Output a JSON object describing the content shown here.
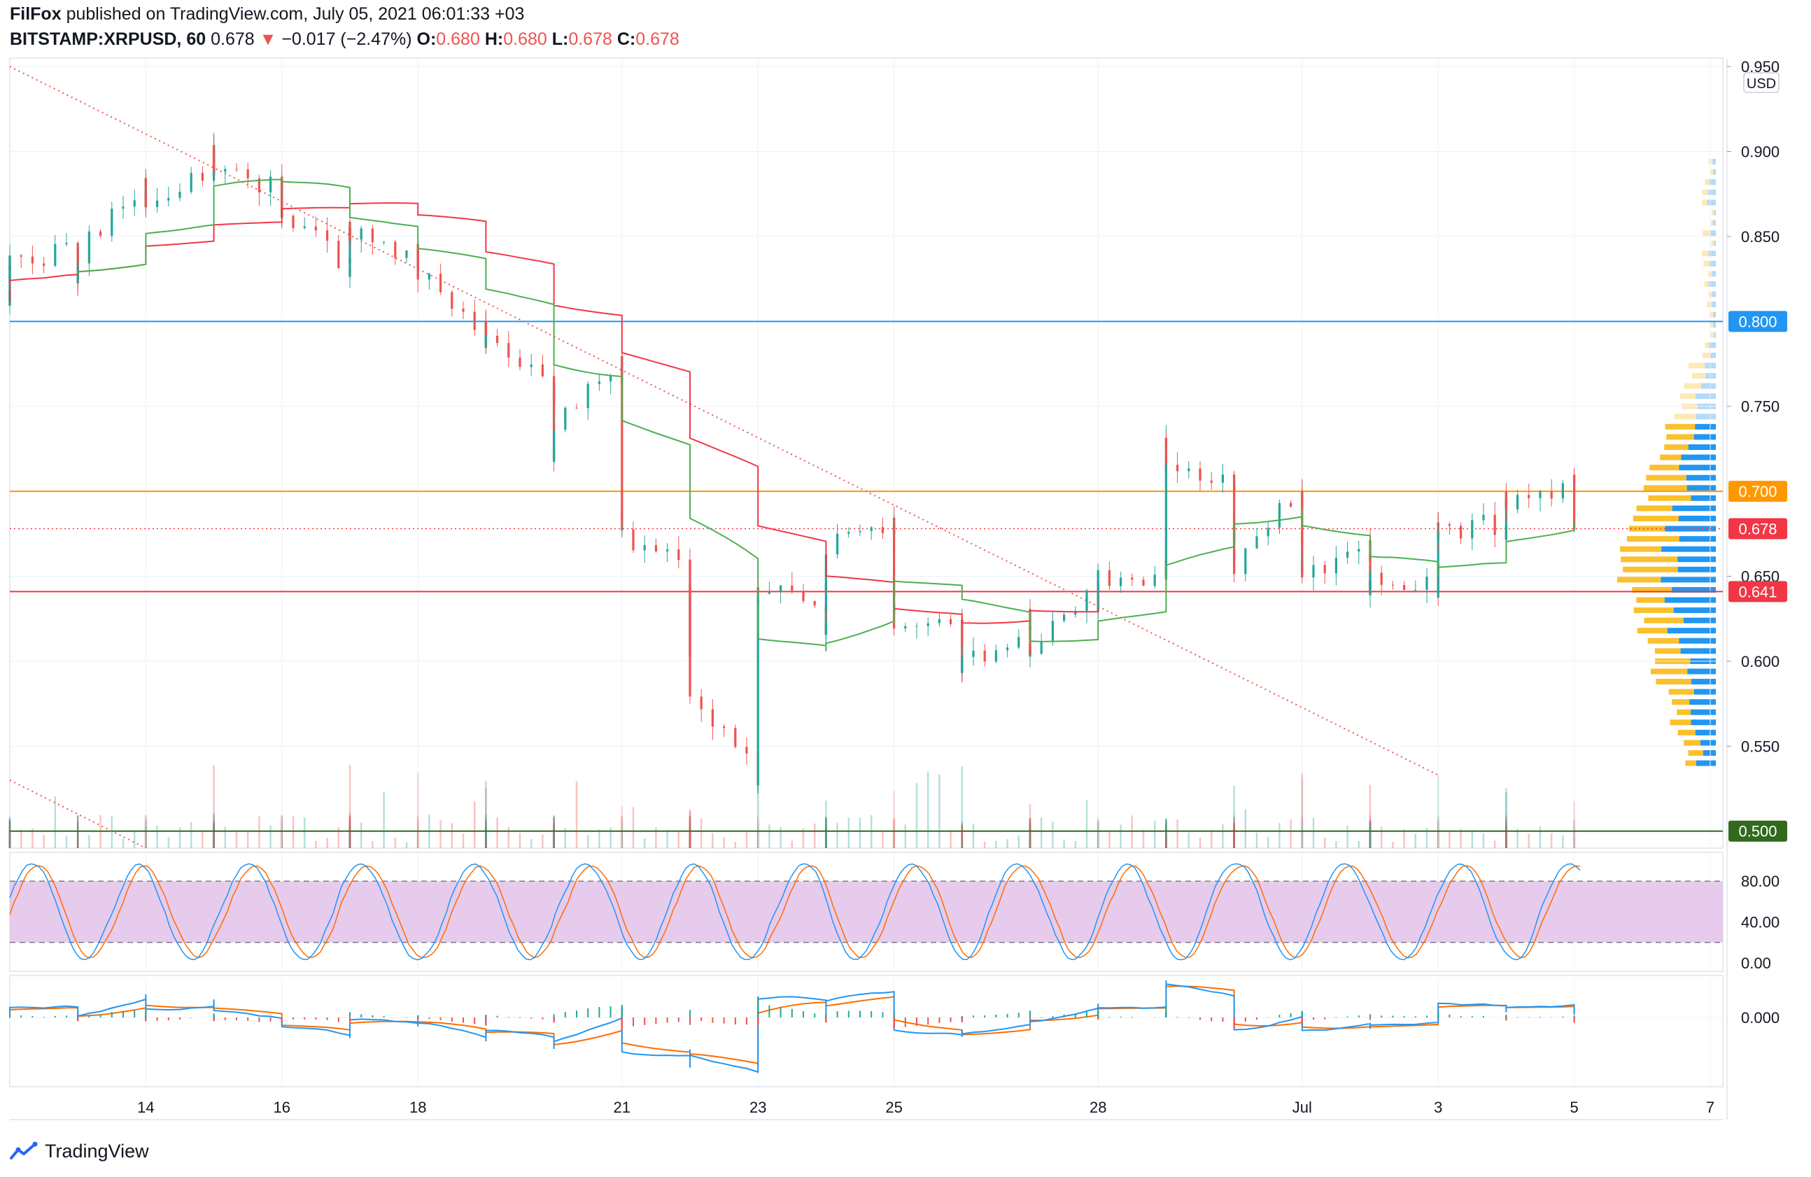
{
  "header": {
    "author": "FilFox",
    "published_text": "published on TradingView.com, July 05, 2021 06:01:33 +03",
    "symbol": "BITSTAMP:XRPUSD, 60",
    "last": "0.678",
    "change": "−0.017 (−2.47%)",
    "o_label": "O:",
    "o_value": "0.680",
    "h_label": "H:",
    "h_value": "0.680",
    "l_label": "L:",
    "l_value": "0.678",
    "c_label": "C:",
    "c_value": "0.678"
  },
  "footer": {
    "brand": "TradingView"
  },
  "colors": {
    "up": "#26a69a",
    "down": "#ef5350",
    "ma_red": "#f23645",
    "ma_green": "#4caf50",
    "line_blue": "#2196f3",
    "line_orange": "#ff9800",
    "line_green": "#33691e",
    "stoch_band": "#e1bee7",
    "stoch_k": "#2196f3",
    "stoch_d": "#ff6d00",
    "macd": "#2196f3",
    "signal": "#ff6d00",
    "vp_up": "#fbc02d",
    "vp_down": "#2196f3"
  },
  "chart_data": {
    "type": "candlestick",
    "currency_label": "USD",
    "price_axis": {
      "ticks": [
        "0.950",
        "0.900",
        "0.850",
        "0.750",
        "0.650",
        "0.600",
        "0.550"
      ],
      "ylim": [
        0.49,
        0.955
      ]
    },
    "time_axis": {
      "labels": [
        "14",
        "16",
        "18",
        "21",
        "23",
        "25",
        "28",
        "Jul",
        "3",
        "5",
        "7"
      ]
    },
    "horizontal_levels": [
      {
        "price": 0.8,
        "label": "0.800",
        "color": "#2196f3"
      },
      {
        "price": 0.7,
        "label": "0.700",
        "color": "#ff9800"
      },
      {
        "price": 0.641,
        "label": "0.641",
        "color": "#f23645"
      },
      {
        "price": 0.5,
        "label": "0.500",
        "color": "#33691e"
      }
    ],
    "current_price": {
      "price": 0.678,
      "label": "0.678",
      "color": "#f23645"
    },
    "trendlines": [
      {
        "from": {
          "date": "Jun 12",
          "price": 0.95
        },
        "to": {
          "date": "Jul 3",
          "price": 0.533
        }
      },
      {
        "from": {
          "date": "Jun 12",
          "price": 0.53
        },
        "to": {
          "date": "Jun 14",
          "price": 0.49
        }
      }
    ],
    "price_path": [
      [
        "Jun 12 00:00",
        0.812
      ],
      [
        "Jun 12 06:00",
        0.82
      ],
      [
        "Jun 12 12:00",
        0.83
      ],
      [
        "Jun 12 18:00",
        0.838
      ],
      [
        "Jun 13 00:00",
        0.84
      ],
      [
        "Jun 13 06:00",
        0.832
      ],
      [
        "Jun 13 12:00",
        0.825
      ],
      [
        "Jun 13 18:00",
        0.84
      ],
      [
        "Jun 14 00:00",
        0.882
      ],
      [
        "Jun 14 06:00",
        0.878
      ],
      [
        "Jun 14 12:00",
        0.87
      ],
      [
        "Jun 14 18:00",
        0.868
      ],
      [
        "Jun 15 00:00",
        0.892
      ],
      [
        "Jun 15 06:00",
        0.9
      ],
      [
        "Jun 15 12:00",
        0.89
      ],
      [
        "Jun 15 18:00",
        0.895
      ],
      [
        "Jun 16 00:00",
        0.875
      ],
      [
        "Jun 16 06:00",
        0.878
      ],
      [
        "Jun 16 12:00",
        0.865
      ],
      [
        "Jun 16 18:00",
        0.868
      ],
      [
        "Jun 17 00:00",
        0.83
      ],
      [
        "Jun 17 06:00",
        0.845
      ],
      [
        "Jun 17 12:00",
        0.857
      ],
      [
        "Jun 17 18:00",
        0.855
      ],
      [
        "Jun 18 00:00",
        0.832
      ],
      [
        "Jun 18 06:00",
        0.84
      ],
      [
        "Jun 18 12:00",
        0.845
      ],
      [
        "Jun 18 18:00",
        0.83
      ],
      [
        "Jun 19 00:00",
        0.785
      ],
      [
        "Jun 19 06:00",
        0.792
      ],
      [
        "Jun 19 12:00",
        0.795
      ],
      [
        "Jun 19 18:00",
        0.788
      ],
      [
        "Jun 20 00:00",
        0.76
      ],
      [
        "Jun 20 06:00",
        0.755
      ],
      [
        "Jun 20 12:00",
        0.718
      ],
      [
        "Jun 20 18:00",
        0.74
      ],
      [
        "Jun 21 00:00",
        0.775
      ],
      [
        "Jun 21 06:00",
        0.755
      ],
      [
        "Jun 21 12:00",
        0.698
      ],
      [
        "Jun 21 18:00",
        0.672
      ],
      [
        "Jun 22 00:00",
        0.665
      ],
      [
        "Jun 22 06:00",
        0.605
      ],
      [
        "Jun 22 12:00",
        0.64
      ],
      [
        "Jun 22 18:00",
        0.585
      ],
      [
        "Jun 23 00:00",
        0.53
      ],
      [
        "Jun 23 06:00",
        0.575
      ],
      [
        "Jun 23 12:00",
        0.63
      ],
      [
        "Jun 23 18:00",
        0.645
      ],
      [
        "Jun 24 00:00",
        0.63
      ],
      [
        "Jun 24 06:00",
        0.612
      ],
      [
        "Jun 24 12:00",
        0.64
      ],
      [
        "Jun 24 18:00",
        0.665
      ],
      [
        "Jun 25 00:00",
        0.685
      ],
      [
        "Jun 25 06:00",
        0.675
      ],
      [
        "Jun 25 12:00",
        0.645
      ],
      [
        "Jun 25 18:00",
        0.625
      ],
      [
        "Jun 26 00:00",
        0.615
      ],
      [
        "Jun 26 06:00",
        0.62
      ],
      [
        "Jun 26 12:00",
        0.595
      ],
      [
        "Jun 26 18:00",
        0.6
      ],
      [
        "Jun 27 00:00",
        0.62
      ],
      [
        "Jun 27 06:00",
        0.625
      ],
      [
        "Jun 27 12:00",
        0.61
      ],
      [
        "Jun 27 18:00",
        0.605
      ],
      [
        "Jun 28 00:00",
        0.645
      ],
      [
        "Jun 28 06:00",
        0.64
      ],
      [
        "Jun 28 12:00",
        0.632
      ],
      [
        "Jun 28 18:00",
        0.65
      ],
      [
        "Jun 29 00:00",
        0.652
      ],
      [
        "Jun 29 06:00",
        0.66
      ],
      [
        "Jun 29 12:00",
        0.725
      ],
      [
        "Jun 29 18:00",
        0.71
      ],
      [
        "Jun 30 00:00",
        0.705
      ],
      [
        "Jun 30 06:00",
        0.675
      ],
      [
        "Jun 30 12:00",
        0.68
      ],
      [
        "Jun 30 18:00",
        0.655
      ],
      [
        "Jul 1 00:00",
        0.705
      ],
      [
        "Jul 1 06:00",
        0.678
      ],
      [
        "Jul 1 12:00",
        0.66
      ],
      [
        "Jul 1 18:00",
        0.655
      ],
      [
        "Jul 2 00:00",
        0.665
      ],
      [
        "Jul 2 06:00",
        0.645
      ],
      [
        "Jul 2 12:00",
        0.64
      ],
      [
        "Jul 2 18:00",
        0.648
      ],
      [
        "Jul 3 00:00",
        0.643
      ],
      [
        "Jul 3 06:00",
        0.652
      ],
      [
        "Jul 3 12:00",
        0.675
      ],
      [
        "Jul 3 18:00",
        0.678
      ],
      [
        "Jul 4 00:00",
        0.68
      ],
      [
        "Jul 4 06:00",
        0.675
      ],
      [
        "Jul 4 12:00",
        0.698
      ],
      [
        "Jul 4 18:00",
        0.695
      ],
      [
        "Jul 5 00:00",
        0.705
      ],
      [
        "Jul 5 06:00",
        0.678
      ]
    ],
    "stochastic": {
      "upper": 80,
      "lower": 20,
      "axis_labels": [
        "80.00",
        "40.00",
        "0.00"
      ]
    },
    "macd": {
      "axis_labels": [
        "0.000"
      ]
    }
  }
}
